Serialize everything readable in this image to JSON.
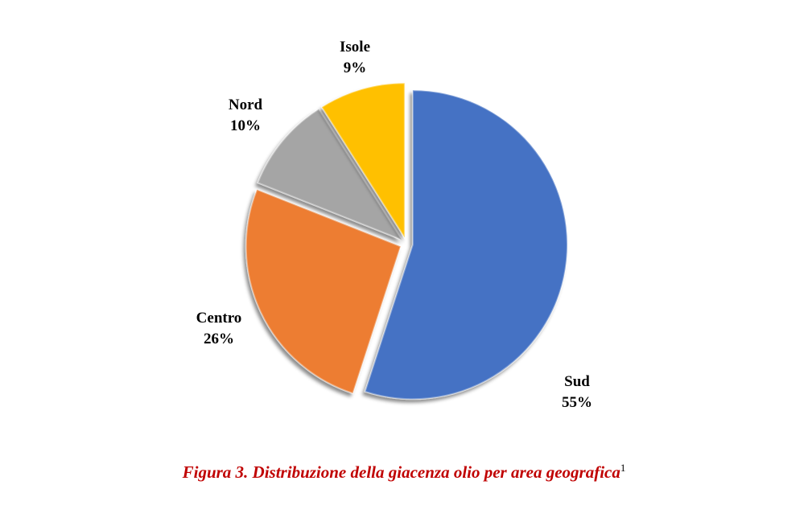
{
  "chart_data": {
    "type": "pie",
    "title": "",
    "categories": [
      "Sud",
      "Centro",
      "Nord",
      "Isole"
    ],
    "values": [
      55,
      26,
      10,
      9
    ],
    "unit": "%",
    "labels": [
      "55%",
      "26%",
      "10%",
      "9%"
    ],
    "colors": [
      "#4472c4",
      "#ed7d31",
      "#a5a5a5",
      "#ffc000"
    ],
    "start_angle": "12 o'clock",
    "direction": "clockwise",
    "exploded": true,
    "legend": "none"
  },
  "caption": {
    "text": "Figura 3. Distribuzione della giacenza olio per area geografica",
    "footnote_mark": "1"
  }
}
